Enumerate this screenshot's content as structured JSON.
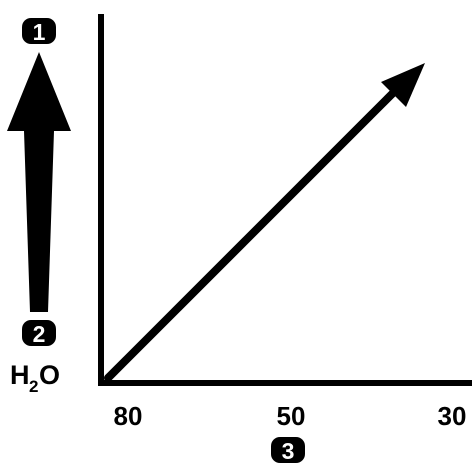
{
  "badges": {
    "top": "1",
    "bottom": "2",
    "axis": "3"
  },
  "formula": {
    "main_left": "H",
    "subscript": "2",
    "main_right": "O"
  },
  "x_axis": {
    "ticks": [
      "80",
      "50",
      "30"
    ]
  },
  "colors": {
    "ink": "#000000",
    "background": "#ffffff"
  }
}
